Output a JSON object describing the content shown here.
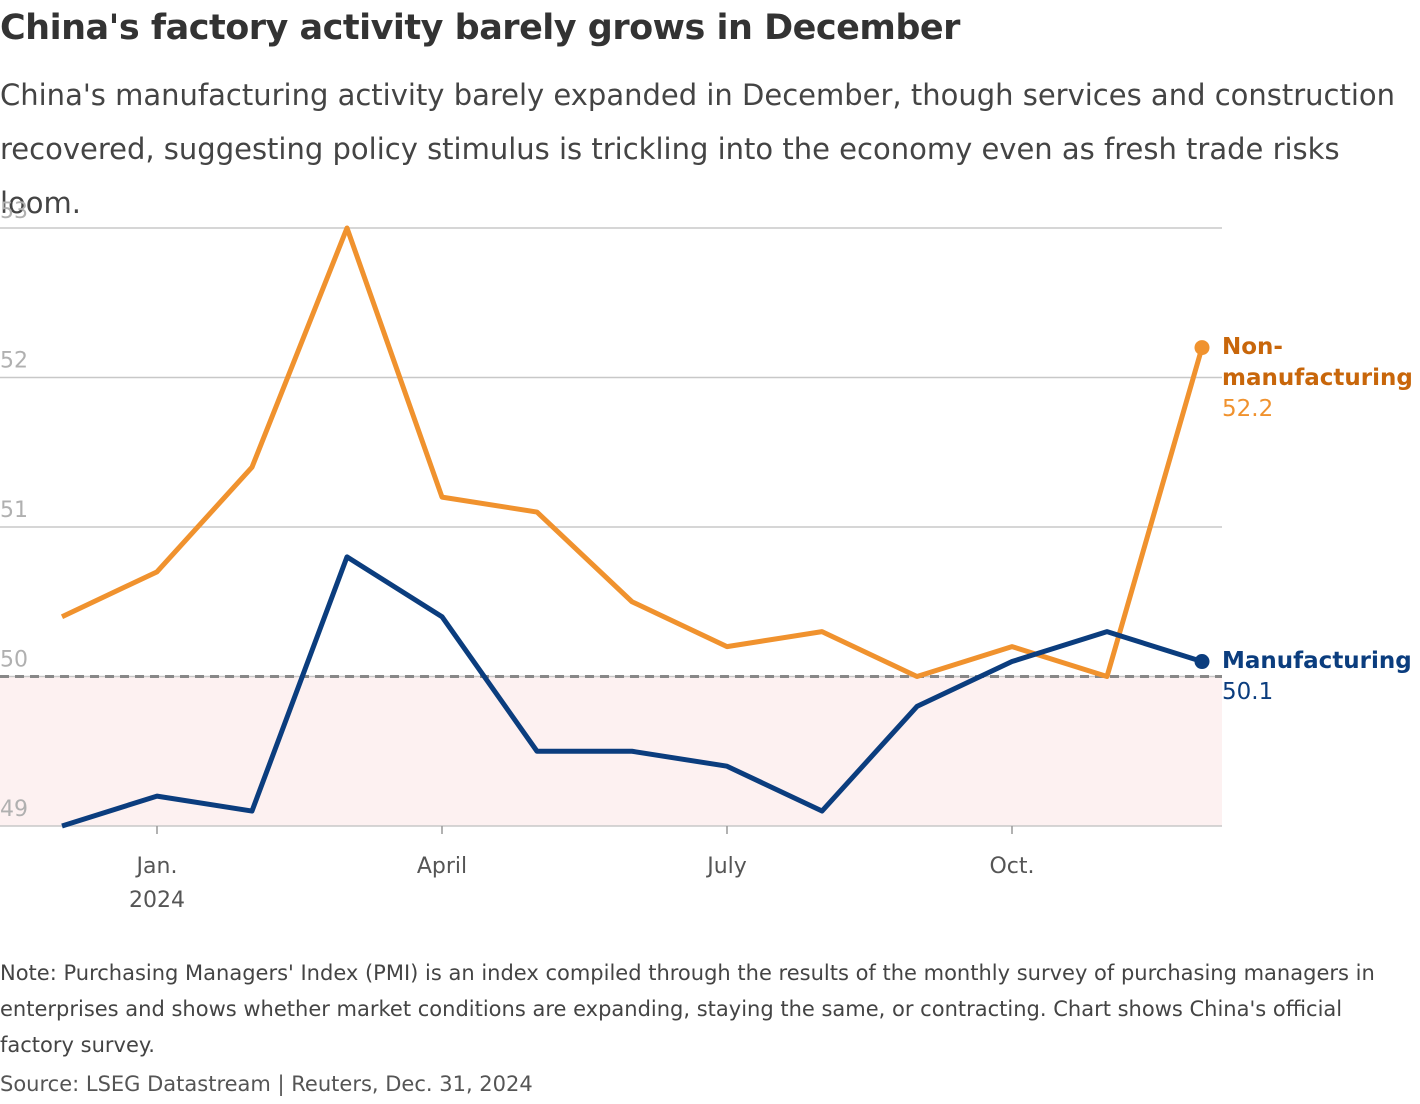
{
  "chart_data": {
    "type": "line",
    "title": "China's factory activity barely grows in December",
    "subtitle": "China's manufacturing activity barely expanded in December, though services and construction recovered, suggesting policy stimulus is trickling into the economy even as fresh trade risks loom.",
    "categories": [
      null,
      "Jan.",
      null,
      null,
      "April",
      null,
      null,
      "July",
      null,
      null,
      "Oct.",
      null,
      null
    ],
    "x_year_label": "2024",
    "series": [
      {
        "name": "Non-manufacturing",
        "color": "#f0922e",
        "label_color": "#c8660a",
        "values": [
          50.4,
          50.7,
          51.4,
          53.0,
          51.2,
          51.1,
          50.5,
          50.2,
          50.3,
          50.0,
          50.2,
          50.0,
          52.2
        ]
      },
      {
        "name": "Manufacturing",
        "color": "#0b3d7e",
        "label_color": "#0b3d7e",
        "values": [
          49.0,
          49.2,
          49.1,
          50.8,
          50.4,
          49.5,
          49.5,
          49.4,
          49.1,
          49.8,
          50.1,
          50.3,
          50.1
        ]
      }
    ],
    "ylim": [
      49,
      53
    ],
    "yticks": [
      49,
      50,
      51,
      52,
      53
    ],
    "grid": true,
    "reference_line": 50,
    "note": "Note: Purchasing Managers' Index (PMI) is an index compiled through the results of the monthly survey of purchasing managers in enterprises and shows whether market conditions are expanding, staying the same, or contracting. Chart shows China's official factory survey.",
    "source": "Source: LSEG Datastream | Reuters, Dec. 31, 2024"
  }
}
